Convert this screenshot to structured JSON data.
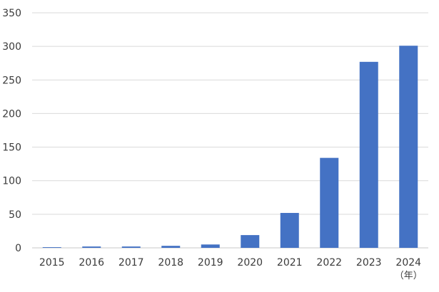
{
  "chart_data": {
    "type": "bar",
    "categories": [
      "2015",
      "2016",
      "2017",
      "2018",
      "2019",
      "2020",
      "2021",
      "2022",
      "2023",
      "2024"
    ],
    "values": [
      1,
      2,
      2,
      3,
      5,
      19,
      52,
      134,
      277,
      301
    ],
    "ylim": [
      0,
      350
    ],
    "yticks": [
      0,
      50,
      100,
      150,
      200,
      250,
      300,
      350
    ],
    "x_unit_label": "（年）",
    "grid": true,
    "bar_color": "#4472c4"
  }
}
